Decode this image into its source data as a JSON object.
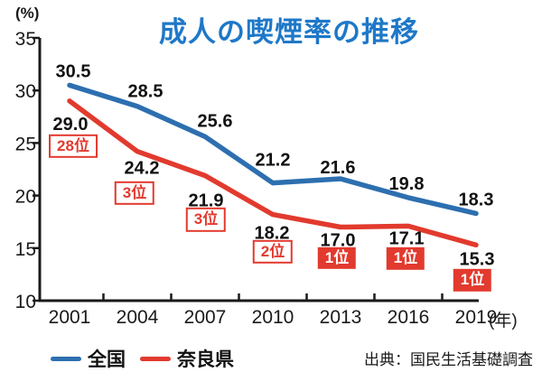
{
  "header": {
    "title": "成人の喫煙率の推移",
    "title_color": "#1e78c8",
    "unit_label": "(%)",
    "year_label": "(年)"
  },
  "chart_data": {
    "type": "line",
    "title": "成人の喫煙率の推移",
    "categories": [
      "2001",
      "2004",
      "2007",
      "2010",
      "2013",
      "2016",
      "2019"
    ],
    "xlabel": "(年)",
    "ylabel": "(%)",
    "ylim": [
      10,
      35
    ],
    "y_ticks": [
      35,
      30,
      25,
      20,
      15,
      10
    ],
    "grid": false,
    "legend_position": "bottom",
    "axis_color": "#1a1a1a",
    "series": [
      {
        "name": "全国",
        "color": "#2d6fb0",
        "values": [
          30.5,
          28.5,
          25.6,
          21.2,
          21.6,
          19.8,
          18.3
        ],
        "label_side": "above"
      },
      {
        "name": "奈良県",
        "color": "#e23a2e",
        "values": [
          29.0,
          24.2,
          21.9,
          18.2,
          17.0,
          17.1,
          15.3
        ],
        "label_side": "below",
        "ranks": [
          {
            "label": "28位",
            "style": "outline"
          },
          {
            "label": "3位",
            "style": "outline"
          },
          {
            "label": "3位",
            "style": "outline"
          },
          {
            "label": "2位",
            "style": "outline"
          },
          {
            "label": "1位",
            "style": "filled"
          },
          {
            "label": "1位",
            "style": "filled"
          },
          {
            "label": "1位",
            "style": "filled"
          }
        ]
      }
    ],
    "source": "出典：国民生活基礎調査"
  }
}
